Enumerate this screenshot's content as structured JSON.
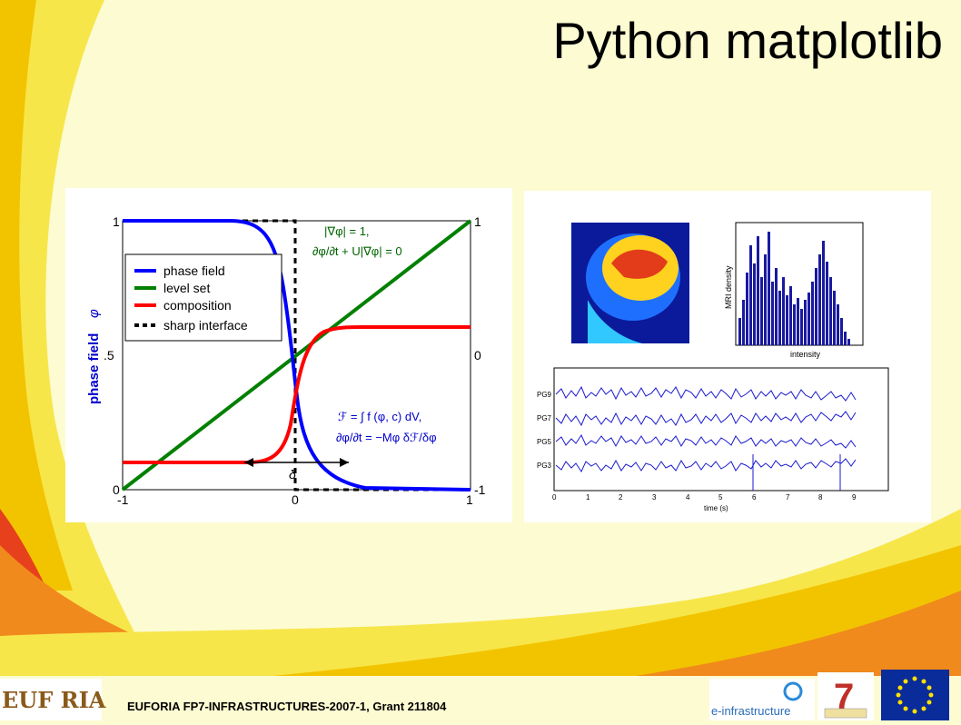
{
  "slide": {
    "title": "Python matplotlib",
    "footer": "EUFORIA FP7-INFRASTRUCTURES-2007-1, Grant 211804"
  },
  "logos": {
    "euforia": "EUF RIA",
    "einfra": "e-infrastructure",
    "fp7_caption": "7"
  },
  "left_plot": {
    "ylabel": "phase field",
    "ylabel_sym": "φ",
    "yticks_left": [
      "1",
      ".5",
      "0"
    ],
    "yticks_right": [
      "1",
      "0",
      "-1"
    ],
    "xticks": [
      "-1",
      "0",
      "1"
    ],
    "legend": [
      "phase field",
      "level set",
      "composition",
      "sharp interface"
    ],
    "eq1a": "|∇φ| = 1,",
    "eq1b": "∂φ/∂t + U|∇φ| = 0",
    "eq2a": "ℱ = ∫ f (φ, c) dV,",
    "eq2b": "∂φ/∂t = −Mφ δℱ/δφ",
    "delta": "δ",
    "colors": {
      "phase": "#0000ff",
      "level": "#008000",
      "comp": "#ff0000",
      "sharp": "#000000"
    }
  },
  "right_plots": {
    "hist_ylabel": "MRI density",
    "hist_xlabel": "intensity",
    "eeg_channels": [
      "PG9",
      "PG7",
      "PG5",
      "PG3"
    ],
    "eeg_xticks": [
      "0",
      "1",
      "2",
      "3",
      "4",
      "5",
      "6",
      "7",
      "8",
      "9"
    ],
    "eeg_xlabel": "time (s)"
  }
}
